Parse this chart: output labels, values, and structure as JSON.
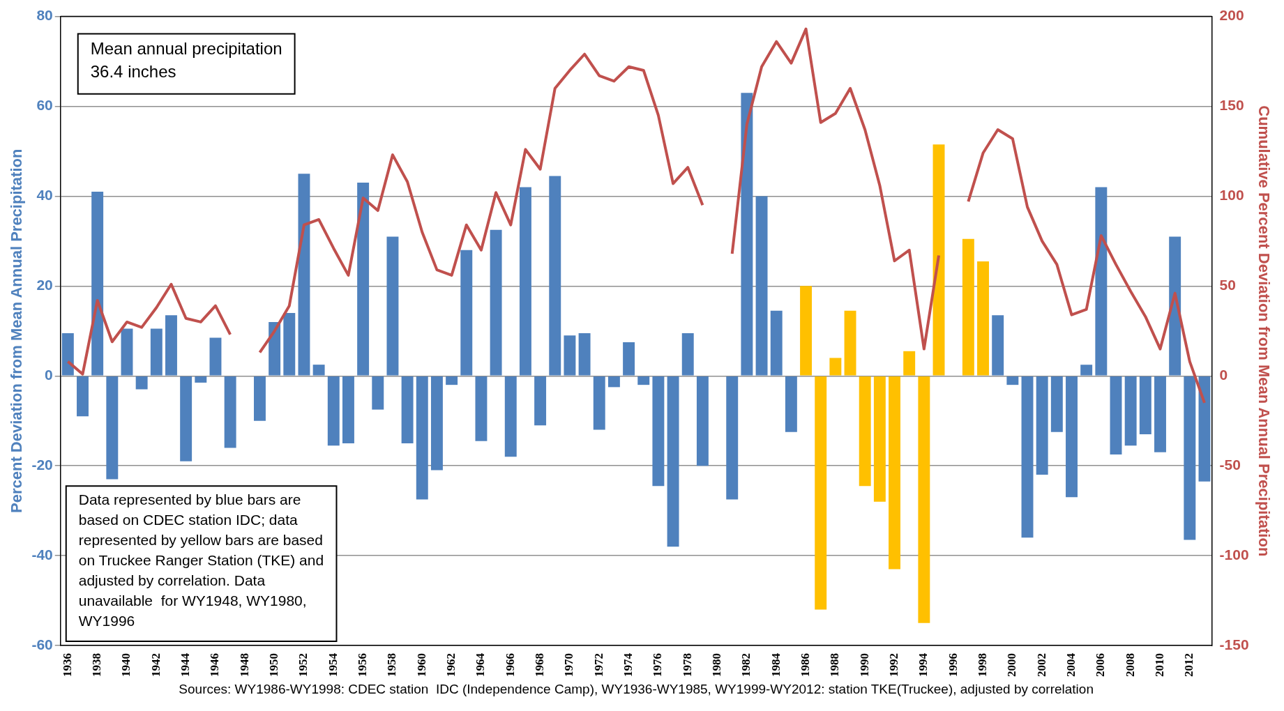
{
  "chart_data": {
    "type": "bar",
    "categories": [
      "1936",
      null,
      "1938",
      null,
      "1940",
      null,
      "1942",
      null,
      "1944",
      null,
      "1946",
      null,
      "1948",
      null,
      "1950",
      null,
      "1952",
      null,
      "1954",
      null,
      "1956",
      null,
      "1958",
      null,
      "1960",
      null,
      "1962",
      null,
      "1964",
      null,
      "1966",
      null,
      "1968",
      null,
      "1970",
      null,
      "1972",
      null,
      "1974",
      null,
      "1976",
      null,
      "1978",
      null,
      "1980",
      null,
      "1982",
      null,
      "1984",
      null,
      "1986",
      null,
      "1988",
      null,
      "1990",
      null,
      "1992",
      null,
      "1994",
      null,
      "1996",
      null,
      "1998",
      null,
      "2000",
      null,
      "2002",
      null,
      "2004",
      null,
      "2006",
      null,
      "2008",
      null,
      "2010",
      null,
      "2012",
      null
    ],
    "series": [
      {
        "type": "bar",
        "colors": [
          "#4f81bd",
          "#4f81bd",
          "#4f81bd",
          "#4f81bd",
          "#4f81bd",
          "#4f81bd",
          "#4f81bd",
          "#4f81bd",
          "#4f81bd",
          "#4f81bd",
          "#4f81bd",
          "#4f81bd",
          "#4f81bd",
          "#4f81bd",
          "#4f81bd",
          "#4f81bd",
          "#4f81bd",
          "#4f81bd",
          "#4f81bd",
          "#4f81bd",
          "#4f81bd",
          "#4f81bd",
          "#4f81bd",
          "#4f81bd",
          "#4f81bd",
          "#4f81bd",
          "#4f81bd",
          "#4f81bd",
          "#4f81bd",
          "#4f81bd",
          "#4f81bd",
          "#4f81bd",
          "#4f81bd",
          "#4f81bd",
          "#4f81bd",
          "#4f81bd",
          "#4f81bd",
          "#4f81bd",
          "#4f81bd",
          "#4f81bd",
          "#4f81bd",
          "#4f81bd",
          "#4f81bd",
          "#4f81bd",
          "#4f81bd",
          "#4f81bd",
          "#4f81bd",
          "#4f81bd",
          "#4f81bd",
          "#4f81bd",
          "#ffc000",
          "#ffc000",
          "#ffc000",
          "#ffc000",
          "#ffc000",
          "#ffc000",
          "#ffc000",
          "#ffc000",
          "#ffc000",
          "#ffc000",
          "#ffc000",
          "#ffc000",
          "#ffc000",
          "#4f81bd",
          "#4f81bd",
          "#4f81bd",
          "#4f81bd",
          "#4f81bd",
          "#4f81bd",
          "#4f81bd",
          "#4f81bd",
          "#4f81bd",
          "#4f81bd",
          "#4f81bd",
          "#4f81bd",
          "#4f81bd",
          "#4f81bd",
          "#4f81bd"
        ],
        "values": [
          9.5,
          -9,
          41,
          -23,
          10.5,
          -3,
          10.5,
          13.5,
          -19,
          -1.5,
          8.5,
          -16,
          null,
          -10,
          12,
          14,
          45,
          2.5,
          -15.5,
          -15,
          43,
          -7.5,
          31,
          -15,
          -27.5,
          -21,
          -2,
          28,
          -14.5,
          32.5,
          -18,
          42,
          -11,
          44.5,
          9,
          9.5,
          -12,
          -2.5,
          7.5,
          -2,
          -24.5,
          -38,
          9.5,
          -20,
          null,
          -27.5,
          63,
          40,
          14.5,
          -12.5,
          20,
          -52,
          4,
          14.5,
          -24.5,
          -28,
          -43,
          5.5,
          -55,
          51.5,
          null,
          30.5,
          25.5,
          13.5,
          -2,
          -36,
          -22,
          -12.5,
          -27,
          2.5,
          42,
          -17.5,
          -15.5,
          -13,
          -17,
          31,
          -36.5,
          -23.5
        ]
      },
      {
        "type": "line",
        "axis": "y2",
        "color": "#c0504d",
        "values": [
          8,
          1,
          42,
          19,
          30,
          27,
          38,
          51,
          32,
          30,
          39,
          23,
          null,
          13,
          25,
          39,
          84,
          87,
          71,
          56,
          99,
          92,
          123,
          108,
          80,
          59,
          56,
          84,
          70,
          102,
          84,
          126,
          115,
          160,
          170,
          179,
          167,
          164,
          172,
          170,
          145,
          107,
          116,
          95,
          null,
          68,
          140,
          172,
          186,
          174,
          193,
          141,
          146,
          160,
          137,
          106,
          64,
          70,
          15,
          67,
          null,
          97,
          124,
          137,
          132,
          94,
          75,
          62,
          34,
          37,
          78,
          62,
          47,
          33,
          15,
          46,
          8,
          -15
        ]
      }
    ],
    "ylabel": "Percent Deviation from Mean Annual Precipitation",
    "y2label": "Cumulative Percent Deviation from Mean Annual Precipitation",
    "ylim": [
      -60,
      80
    ],
    "yticks": [
      -60,
      -40,
      -20,
      0,
      20,
      40,
      60,
      80
    ],
    "y2lim": [
      -150,
      200
    ],
    "y2ticks": [
      -150,
      -100,
      -50,
      0,
      50,
      100,
      150,
      200
    ],
    "grid": "y",
    "legend": false,
    "marker": "none",
    "line_style": "solid",
    "annotations": [
      "Mean annual precipitation\n36.4 inches",
      "Data represented by blue bars are based on CDEC station IDC; data represented by yellow bars are based on Truckee Ranger Station (TKE) and adjusted by correlation. Data unavailable  for WY1948, WY1980, WY1996",
      "Sources: WY1986-WY1998: CDEC station  IDC (Independence Camp), WY1936-WY1985, WY1999-WY2012: station TKE(Truckee), adjusted by correlation"
    ]
  }
}
